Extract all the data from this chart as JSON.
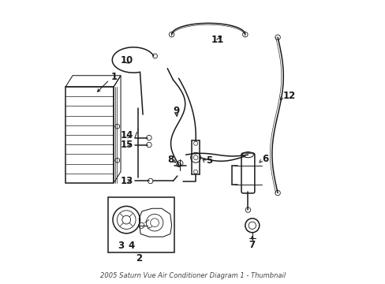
{
  "title": "2005 Saturn Vue Air Conditioner Diagram 1 - Thumbnail",
  "background_color": "#ffffff",
  "line_color": "#1a1a1a",
  "figsize": [
    4.89,
    3.6
  ],
  "dpi": 100,
  "label_positions": {
    "1": [
      0.19,
      0.595,
      "left"
    ],
    "2": [
      0.385,
      0.095,
      "center"
    ],
    "3": [
      0.235,
      0.145,
      "left"
    ],
    "4": [
      0.278,
      0.145,
      "left"
    ],
    "5": [
      0.545,
      0.435,
      "left"
    ],
    "6": [
      0.748,
      0.44,
      "left"
    ],
    "7": [
      0.715,
      0.135,
      "center"
    ],
    "8": [
      0.41,
      0.435,
      "left"
    ],
    "9": [
      0.43,
      0.61,
      "left"
    ],
    "10": [
      0.245,
      0.785,
      "left"
    ],
    "11": [
      0.565,
      0.86,
      "left"
    ],
    "12": [
      0.82,
      0.66,
      "left"
    ],
    "13": [
      0.245,
      0.36,
      "left"
    ],
    "14": [
      0.245,
      0.52,
      "left"
    ],
    "15": [
      0.245,
      0.485,
      "left"
    ]
  }
}
